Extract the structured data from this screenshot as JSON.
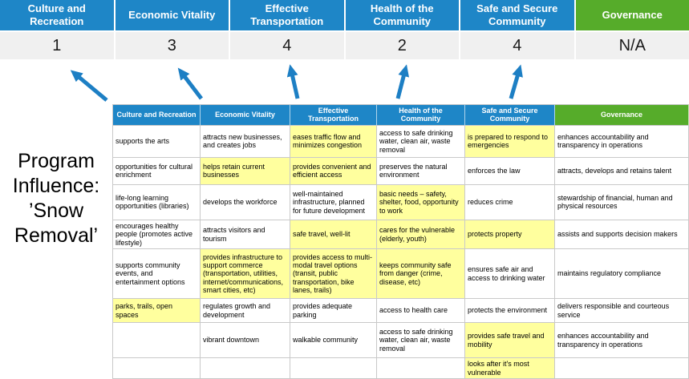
{
  "colors": {
    "header_blue": "#1e86c7",
    "header_green": "#56ac2a",
    "highlight_yellow": "#ffff9e",
    "score_bg": "#f0f0f0",
    "arrow_blue": "#1d7fc4",
    "grid_border": "#c9c9c9"
  },
  "title": {
    "lines": [
      "Program",
      "Influence:",
      "’Snow",
      "Removal’"
    ]
  },
  "banner": {
    "columns": [
      {
        "label": "Culture and Recreation",
        "score": "1"
      },
      {
        "label": "Economic Vitality",
        "score": "3"
      },
      {
        "label": "Effective Transportation",
        "score": "4"
      },
      {
        "label": "Health of the Community",
        "score": "2"
      },
      {
        "label": "Safe and Secure Community",
        "score": "4"
      },
      {
        "label": "Governance",
        "score": "N/A"
      }
    ]
  },
  "matrix": {
    "headers": [
      "Culture and Recreation",
      "Economic Vitality",
      "Effective Transportation",
      "Health of the Community",
      "Safe and Secure Community",
      "Governance"
    ],
    "rows": [
      [
        {
          "text": "supports the arts",
          "highlight": false
        },
        {
          "text": "attracts new businesses, and creates jobs",
          "highlight": false
        },
        {
          "text": "eases traffic flow and minimizes congestion",
          "highlight": true
        },
        {
          "text": "access to safe drinking water, clean air, waste removal",
          "highlight": false
        },
        {
          "text": "is prepared to respond to emergencies",
          "highlight": true
        },
        {
          "text": "enhances accountability and transparency in operations",
          "highlight": false
        }
      ],
      [
        {
          "text": "opportunities for cultural enrichment",
          "highlight": false
        },
        {
          "text": "helps retain current businesses",
          "highlight": true
        },
        {
          "text": "provides convenient and efficient access",
          "highlight": true
        },
        {
          "text": "preserves the natural environment",
          "highlight": false
        },
        {
          "text": "enforces the law",
          "highlight": false
        },
        {
          "text": "attracts, develops and retains talent",
          "highlight": false
        }
      ],
      [
        {
          "text": "life-long learning opportunities (libraries)",
          "highlight": false
        },
        {
          "text": "develops the workforce",
          "highlight": false
        },
        {
          "text": "well-maintained infrastructure, planned for future development",
          "highlight": false
        },
        {
          "text": "basic needs – safety, shelter, food, opportunity to work",
          "highlight": true
        },
        {
          "text": "reduces crime",
          "highlight": false
        },
        {
          "text": "stewardship of financial, human and physical resources",
          "highlight": false
        }
      ],
      [
        {
          "text": "encourages healthy people (promotes active lifestyle)",
          "highlight": false
        },
        {
          "text": "attracts visitors and tourism",
          "highlight": false
        },
        {
          "text": "safe travel, well-lit",
          "highlight": true
        },
        {
          "text": "cares for the vulnerable (elderly, youth)",
          "highlight": true
        },
        {
          "text": "protects property",
          "highlight": true
        },
        {
          "text": "assists and supports decision makers",
          "highlight": false
        }
      ],
      [
        {
          "text": "supports community events, and entertainment options",
          "highlight": false
        },
        {
          "text": "provides infrastructure to support commerce (transportation, utilities, internet/communications, smart cities, etc)",
          "highlight": true
        },
        {
          "text": "provides access to multi-modal travel options (transit, public transportation, bike lanes, trails)",
          "highlight": true
        },
        {
          "text": "keeps community safe from danger (crime, disease, etc)",
          "highlight": true
        },
        {
          "text": "ensures safe air and access to drinking water",
          "highlight": false
        },
        {
          "text": "maintains regulatory compliance",
          "highlight": false
        }
      ],
      [
        {
          "text": "parks, trails, open spaces",
          "highlight": true
        },
        {
          "text": "regulates growth and development",
          "highlight": false
        },
        {
          "text": "provides adequate parking",
          "highlight": false
        },
        {
          "text": "access to health care",
          "highlight": false
        },
        {
          "text": "protects the environment",
          "highlight": false
        },
        {
          "text": "delivers responsible and courteous service",
          "highlight": false
        }
      ],
      [
        {
          "text": "",
          "highlight": false
        },
        {
          "text": "vibrant downtown",
          "highlight": false
        },
        {
          "text": "walkable community",
          "highlight": false
        },
        {
          "text": "access to safe drinking water, clean air, waste removal",
          "highlight": false
        },
        {
          "text": "provides safe travel and mobility",
          "highlight": true
        },
        {
          "text": "enhances accountability and transparency in operations",
          "highlight": false
        }
      ],
      [
        {
          "text": "",
          "highlight": false
        },
        {
          "text": "",
          "highlight": false
        },
        {
          "text": "",
          "highlight": false
        },
        {
          "text": "",
          "highlight": false
        },
        {
          "text": "looks after it's most vulnerable",
          "highlight": true
        },
        {
          "text": "",
          "highlight": false
        }
      ]
    ]
  }
}
